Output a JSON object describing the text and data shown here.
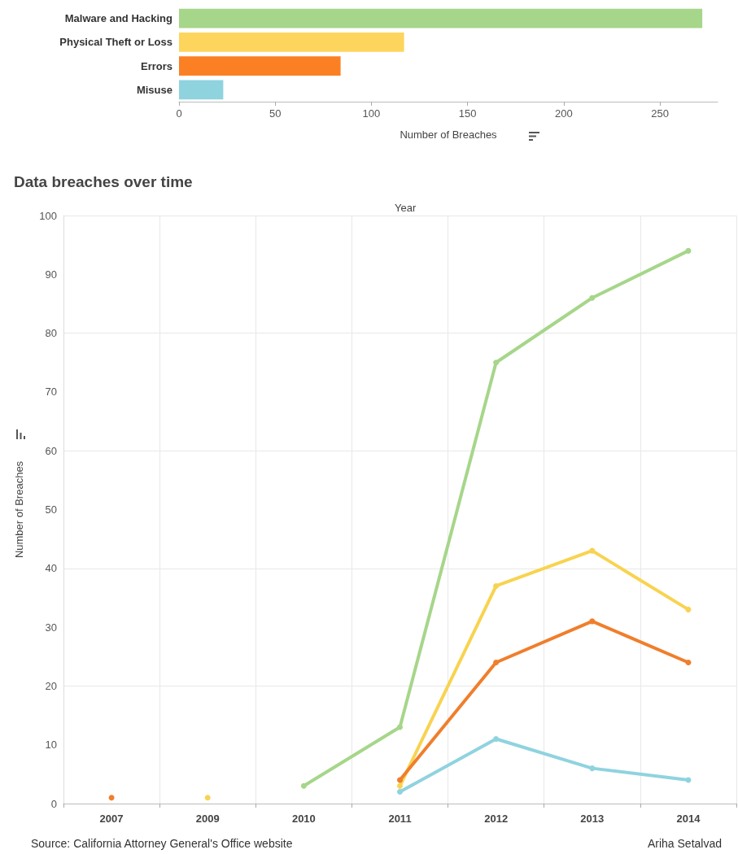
{
  "chart_data": [
    {
      "type": "bar",
      "orientation": "horizontal",
      "categories": [
        "Malware and Hacking",
        "Physical Theft or Loss",
        "Errors",
        "Misuse"
      ],
      "values": [
        272,
        117,
        84,
        23
      ],
      "colors": [
        "#a6d68a",
        "#fdd55c",
        "#fb8024",
        "#8fd3df"
      ],
      "xlabel": "Number of Breaches",
      "xlim": [
        0,
        280
      ],
      "xticks": [
        0,
        50,
        100,
        150,
        200,
        250
      ],
      "grid": false
    },
    {
      "type": "line",
      "title": "Data breaches over time",
      "xlabel": "Year",
      "ylabel": "Number of Breaches",
      "categories": [
        "2007",
        "2009",
        "2010",
        "2011",
        "2012",
        "2013",
        "2014"
      ],
      "series": [
        {
          "color": "#a6d68a",
          "values": [
            null,
            null,
            3,
            13,
            75,
            86,
            94
          ]
        },
        {
          "color": "#f8d350",
          "values": [
            null,
            1,
            null,
            3,
            37,
            43,
            33
          ]
        },
        {
          "color": "#f07e2c",
          "values": [
            1,
            null,
            null,
            4,
            24,
            31,
            24
          ]
        },
        {
          "color": "#8fd3df",
          "values": [
            null,
            null,
            null,
            2,
            11,
            6,
            4
          ]
        }
      ],
      "ylim": [
        0,
        100
      ],
      "yticks": [
        0,
        10,
        20,
        30,
        40,
        50,
        60,
        70,
        80,
        90,
        100
      ],
      "grid": true,
      "marker": "circle",
      "line_style": "solid",
      "annotations": [
        "Source: California Attorney General's Office website",
        "Ariha Setalvad"
      ]
    }
  ]
}
